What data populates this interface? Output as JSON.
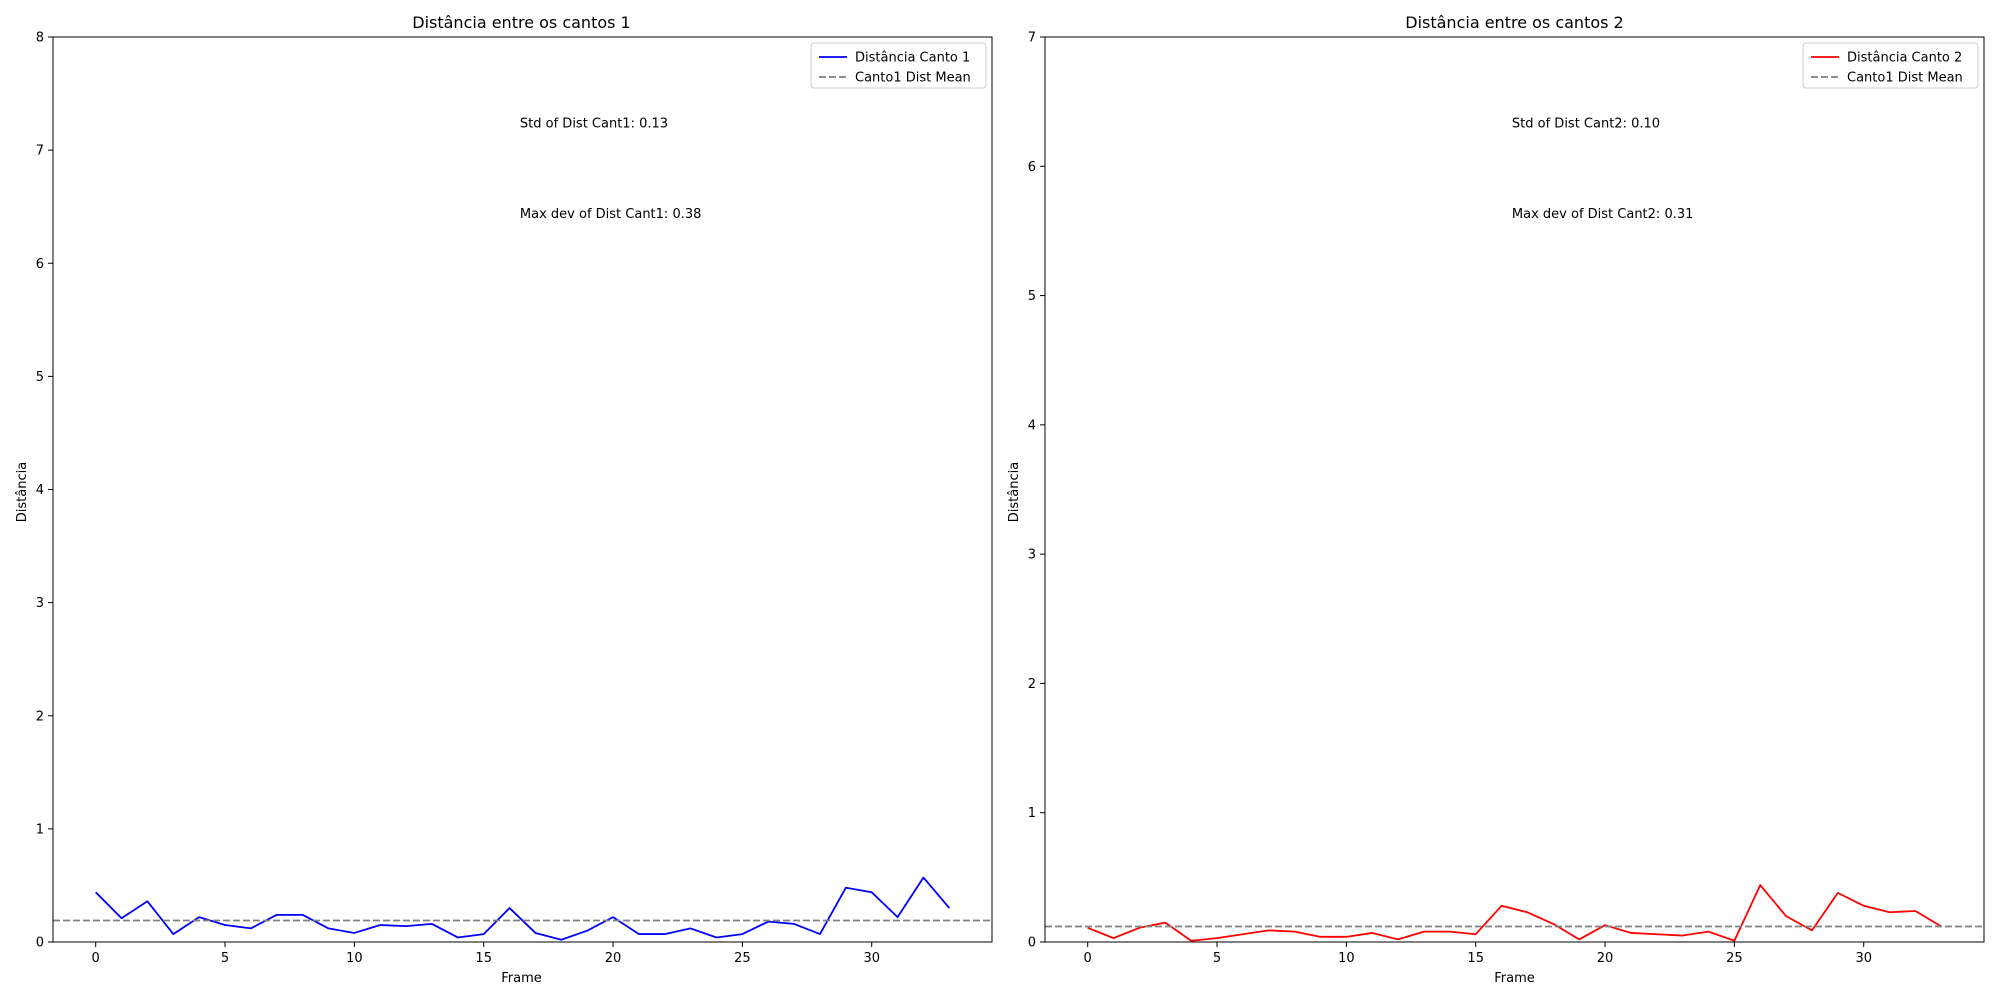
{
  "chart_data": [
    {
      "type": "line",
      "title": "Distância entre os cantos 1",
      "xlabel": "Frame",
      "ylabel": "Distância",
      "xlim": [
        -1.65,
        34.65
      ],
      "ylim": [
        0,
        8
      ],
      "x_ticks": [
        0,
        5,
        10,
        15,
        20,
        25,
        30
      ],
      "y_ticks": [
        0,
        1,
        2,
        3,
        4,
        5,
        6,
        7,
        8
      ],
      "grid": false,
      "legend_position": "top-right",
      "series": [
        {
          "name": "Distância Canto 1",
          "color": "#0000ff",
          "style": "solid",
          "x": [
            0,
            1,
            2,
            3,
            4,
            5,
            6,
            7,
            8,
            9,
            10,
            11,
            12,
            13,
            14,
            15,
            16,
            17,
            18,
            19,
            20,
            21,
            22,
            23,
            24,
            25,
            26,
            27,
            28,
            29,
            30,
            31,
            32,
            33
          ],
          "values": [
            0.44,
            0.21,
            0.36,
            0.07,
            0.22,
            0.15,
            0.12,
            0.24,
            0.24,
            0.12,
            0.08,
            0.15,
            0.14,
            0.16,
            0.04,
            0.07,
            0.3,
            0.08,
            0.02,
            0.1,
            0.22,
            0.07,
            0.07,
            0.12,
            0.04,
            0.07,
            0.18,
            0.16,
            0.07,
            0.48,
            0.44,
            0.22,
            0.57,
            0.3
          ]
        },
        {
          "name": "Canto1 Dist Mean",
          "color": "#808080",
          "style": "dashed",
          "constant": 0.19
        }
      ],
      "annotations": [
        {
          "text": "Std of Dist Cant1: 0.13",
          "x": 16.4,
          "y": 7.2
        },
        {
          "text": "Max dev of Dist Cant1: 0.38",
          "x": 16.4,
          "y": 6.4
        }
      ]
    },
    {
      "type": "line",
      "title": "Distância entre os cantos 2",
      "xlabel": "Frame",
      "ylabel": "Distância",
      "xlim": [
        -1.65,
        34.65
      ],
      "ylim": [
        0,
        7
      ],
      "x_ticks": [
        0,
        5,
        10,
        15,
        20,
        25,
        30
      ],
      "y_ticks": [
        0,
        1,
        2,
        3,
        4,
        5,
        6,
        7
      ],
      "grid": false,
      "legend_position": "top-right",
      "series": [
        {
          "name": "Distância Canto 2",
          "color": "#ff0000",
          "style": "solid",
          "x": [
            0,
            1,
            2,
            3,
            4,
            5,
            6,
            7,
            8,
            9,
            10,
            11,
            12,
            13,
            14,
            15,
            16,
            17,
            18,
            19,
            20,
            21,
            22,
            23,
            24,
            25,
            26,
            27,
            28,
            29,
            30,
            31,
            32,
            33
          ],
          "values": [
            0.11,
            0.03,
            0.11,
            0.15,
            0.01,
            0.03,
            0.06,
            0.09,
            0.08,
            0.04,
            0.04,
            0.07,
            0.02,
            0.08,
            0.08,
            0.06,
            0.28,
            0.23,
            0.14,
            0.02,
            0.13,
            0.07,
            0.06,
            0.05,
            0.08,
            0.01,
            0.44,
            0.2,
            0.09,
            0.38,
            0.28,
            0.23,
            0.24,
            0.12
          ]
        },
        {
          "name": "Canto1 Dist Mean",
          "color": "#808080",
          "style": "dashed",
          "constant": 0.12
        }
      ],
      "annotations": [
        {
          "text": "Std of Dist Cant2: 0.10",
          "x": 16.4,
          "y": 6.3
        },
        {
          "text": "Max dev of Dist Cant2: 0.31",
          "x": 16.4,
          "y": 5.6
        }
      ]
    }
  ]
}
